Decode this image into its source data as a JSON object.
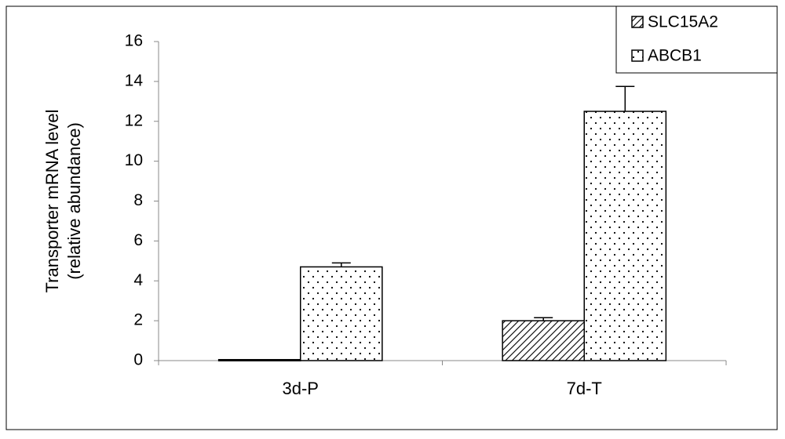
{
  "chart_data": {
    "type": "bar",
    "ylabel": [
      "Transporter mRNA level",
      "(relative abundance)"
    ],
    "categories": [
      "3d-P",
      "7d-T"
    ],
    "series": [
      {
        "name": "SLC15A2",
        "color": "#000000",
        "pattern": "diagonal",
        "values": [
          0.05,
          2.0
        ],
        "errors": [
          null,
          0.15
        ]
      },
      {
        "name": "ABCB1",
        "color": "#000000",
        "pattern": "dots",
        "values": [
          4.7,
          12.5
        ],
        "errors": [
          0.2,
          1.25
        ]
      }
    ],
    "ylim": [
      0,
      16
    ],
    "yticks": [
      0,
      2,
      4,
      6,
      8,
      10,
      12,
      14,
      16
    ],
    "legend": "top-right"
  }
}
